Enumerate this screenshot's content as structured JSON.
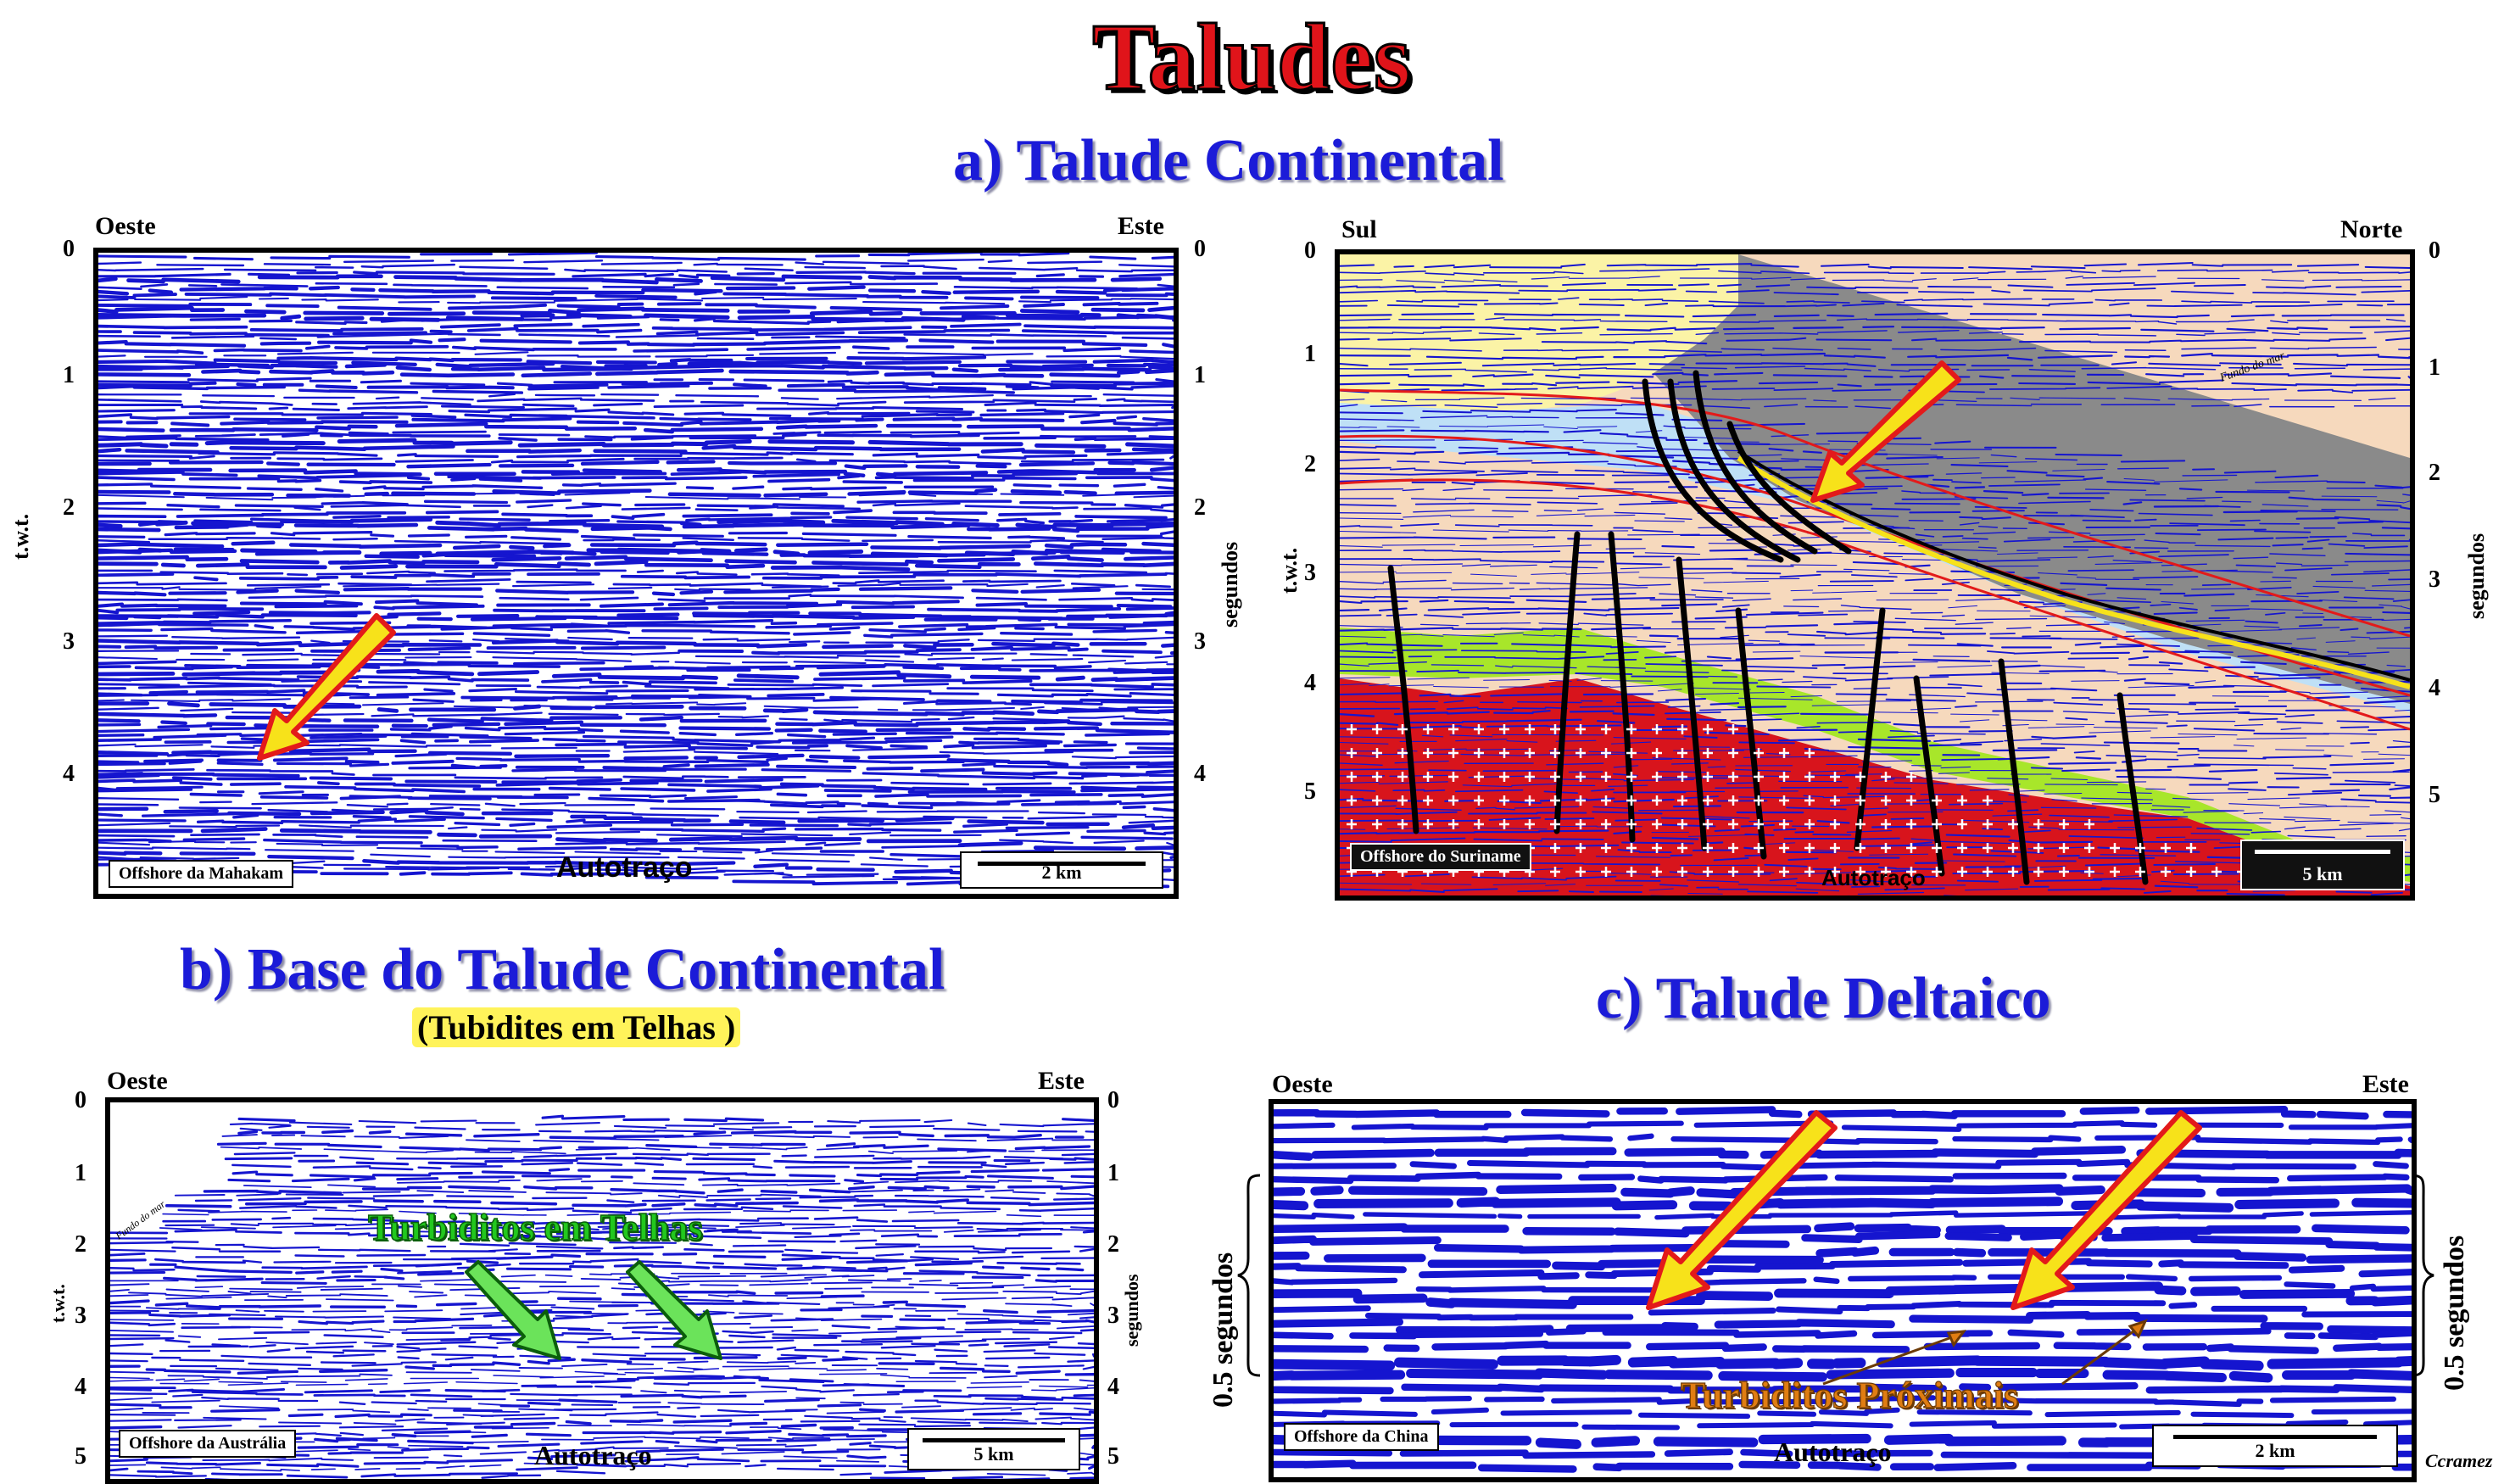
{
  "title": "Taludes",
  "sections": {
    "a": {
      "title": "a) Talude Continental"
    },
    "b": {
      "title": "b) Base do Talude Continental",
      "subtitle": "(Tubidites em Telhas )"
    },
    "c": {
      "title": "c) Talude Deltaico"
    }
  },
  "panels": {
    "mahakam": {
      "left_label": "Oeste",
      "right_label": "Este",
      "left_axis_label": "t.w.t.",
      "right_axis_label": "segundos",
      "ticks": [
        "0",
        "1",
        "2",
        "3",
        "4"
      ],
      "location": "Offshore da Mahakam",
      "scale": "2 km",
      "credit": "Autotraço"
    },
    "suriname": {
      "left_label": "Sul",
      "right_label": "Norte",
      "left_axis_label": "t.w.t.",
      "right_axis_label": "segundos",
      "ticks": [
        "0",
        "1",
        "2",
        "3",
        "4",
        "5"
      ],
      "location": "Offshore do Suriname",
      "scale": "5 km",
      "credit": "Autotraço",
      "seafloor_label": "Fundo do mar"
    },
    "australia": {
      "left_label": "Oeste",
      "right_label": "Este",
      "left_axis_label": "t.w.t.",
      "right_axis_label": "segundos",
      "ticks": [
        "0",
        "1",
        "2",
        "3",
        "4",
        "5"
      ],
      "location": "Offshore da Austrália",
      "scale": "5 km",
      "credit": "Autotraço",
      "annotation": "Turbiditos em Telhas",
      "seafloor_label": "Fundo do mar"
    },
    "china": {
      "left_label": "Oeste",
      "right_label": "Este",
      "left_axis_label": "0.5  segundos",
      "right_axis_label": "0.5  segundos",
      "location": "Offshore da China",
      "scale": "2 km",
      "credit": "Autotraço",
      "annotation": "Turbiditos Próximais"
    }
  },
  "author": "Ccramez",
  "colors": {
    "reflector_blue": "#1515cf",
    "title_red": "#e0141a",
    "title_blue": "#1b1bd8",
    "arrow_yellow": "#f7e21a",
    "arrow_red": "#e31a1a",
    "turbidite_green": "#22c81e",
    "turbidite_orange": "#e07d12",
    "wedge_gray": "#8a8a8a",
    "basement_red": "#d8141c",
    "sand_yellow": "#fbf3a6",
    "sand_green": "#a8e62a",
    "pale_blue": "#bfe0f6",
    "peach": "#f6d9bd"
  }
}
